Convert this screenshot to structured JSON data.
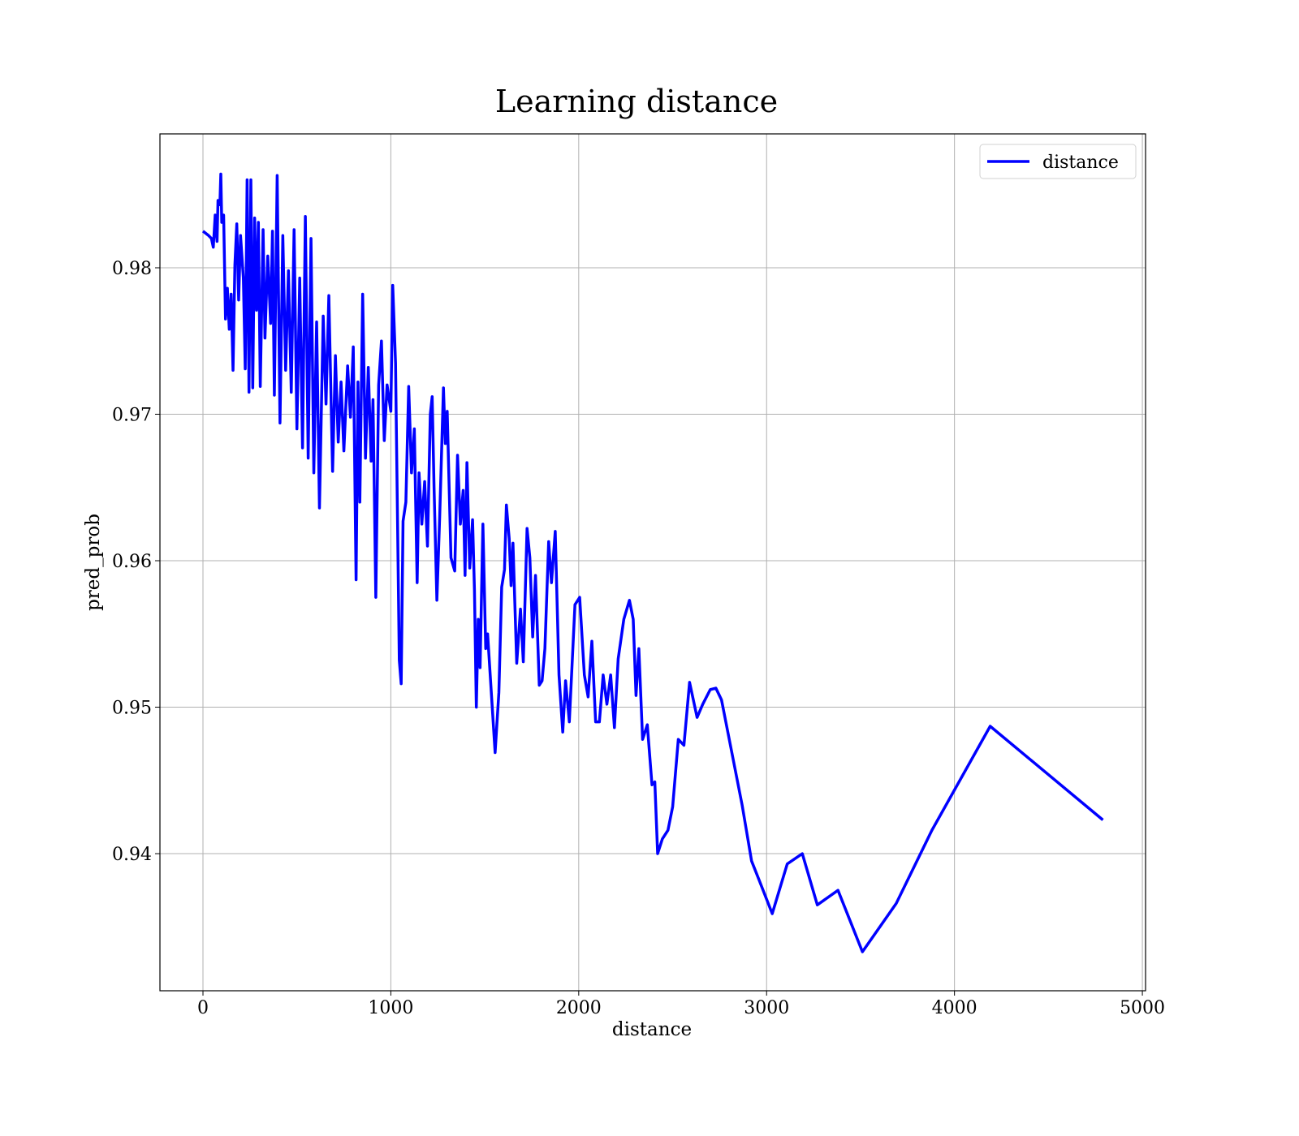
{
  "chart_data": {
    "type": "line",
    "title": "Learning distance",
    "x_label": "distance",
    "y_label": "pred_prob",
    "x": [
      0,
      30,
      45,
      55,
      65,
      75,
      80,
      90,
      95,
      100,
      110,
      120,
      130,
      140,
      150,
      160,
      170,
      180,
      190,
      200,
      215,
      225,
      235,
      245,
      255,
      265,
      275,
      285,
      295,
      305,
      320,
      330,
      345,
      360,
      370,
      380,
      395,
      410,
      425,
      440,
      455,
      470,
      485,
      500,
      515,
      530,
      545,
      560,
      575,
      590,
      605,
      620,
      640,
      655,
      670,
      690,
      705,
      720,
      735,
      750,
      770,
      785,
      800,
      815,
      825,
      835,
      850,
      865,
      880,
      895,
      905,
      920,
      935,
      950,
      965,
      980,
      1000,
      1010,
      1025,
      1045,
      1055,
      1065,
      1080,
      1095,
      1110,
      1125,
      1140,
      1150,
      1165,
      1180,
      1195,
      1210,
      1220,
      1230,
      1245,
      1260,
      1280,
      1290,
      1300,
      1320,
      1340,
      1355,
      1370,
      1385,
      1395,
      1405,
      1420,
      1435,
      1445,
      1455,
      1465,
      1475,
      1490,
      1505,
      1515,
      1555,
      1575,
      1590,
      1605,
      1615,
      1630,
      1640,
      1650,
      1670,
      1690,
      1705,
      1725,
      1740,
      1755,
      1770,
      1790,
      1805,
      1820,
      1840,
      1855,
      1875,
      1895,
      1915,
      1930,
      1950,
      1980,
      2005,
      2030,
      2050,
      2070,
      2090,
      2110,
      2130,
      2150,
      2170,
      2190,
      2210,
      2240,
      2270,
      2290,
      2305,
      2320,
      2340,
      2365,
      2390,
      2405,
      2420,
      2445,
      2475,
      2500,
      2530,
      2560,
      2590,
      2630,
      2660,
      2700,
      2730,
      2760,
      2870,
      2920,
      2960,
      3030,
      3110,
      3190,
      3270,
      3380,
      3510,
      3690,
      3880,
      4190,
      4790
    ],
    "series": [
      {
        "name": "distance",
        "color": "#0000ff",
        "values": [
          0.9825,
          0.9822,
          0.982,
          0.9814,
          0.9836,
          0.9818,
          0.9846,
          0.9843,
          0.9864,
          0.9831,
          0.9836,
          0.9765,
          0.9786,
          0.9758,
          0.9782,
          0.973,
          0.9802,
          0.983,
          0.9778,
          0.9822,
          0.9793,
          0.9731,
          0.986,
          0.9715,
          0.986,
          0.9718,
          0.9834,
          0.9771,
          0.9831,
          0.9719,
          0.9826,
          0.9752,
          0.9808,
          0.9762,
          0.9825,
          0.9713,
          0.9863,
          0.9694,
          0.9822,
          0.973,
          0.9798,
          0.9715,
          0.9826,
          0.969,
          0.9793,
          0.9677,
          0.9835,
          0.967,
          0.982,
          0.966,
          0.9763,
          0.9636,
          0.9767,
          0.9707,
          0.9781,
          0.9661,
          0.974,
          0.9681,
          0.9722,
          0.9675,
          0.9733,
          0.9698,
          0.9746,
          0.9587,
          0.9722,
          0.964,
          0.9782,
          0.967,
          0.9732,
          0.9668,
          0.971,
          0.9575,
          0.972,
          0.975,
          0.9682,
          0.972,
          0.9702,
          0.9788,
          0.9735,
          0.9532,
          0.9516,
          0.9627,
          0.964,
          0.9719,
          0.966,
          0.969,
          0.9585,
          0.966,
          0.9625,
          0.9654,
          0.961,
          0.97,
          0.9712,
          0.965,
          0.9573,
          0.963,
          0.9718,
          0.968,
          0.9702,
          0.9602,
          0.9593,
          0.9672,
          0.9625,
          0.9648,
          0.959,
          0.9667,
          0.9595,
          0.9628,
          0.958,
          0.95,
          0.956,
          0.9527,
          0.9625,
          0.954,
          0.955,
          0.9469,
          0.951,
          0.9582,
          0.9594,
          0.9638,
          0.9615,
          0.9583,
          0.9612,
          0.953,
          0.9567,
          0.9531,
          0.9622,
          0.9602,
          0.9548,
          0.959,
          0.9515,
          0.9518,
          0.954,
          0.9613,
          0.9585,
          0.962,
          0.9522,
          0.9483,
          0.9518,
          0.949,
          0.957,
          0.9575,
          0.9522,
          0.9507,
          0.9545,
          0.949,
          0.949,
          0.9522,
          0.9502,
          0.9522,
          0.9486,
          0.9533,
          0.956,
          0.9573,
          0.956,
          0.9508,
          0.954,
          0.9478,
          0.9488,
          0.9447,
          0.9449,
          0.94,
          0.941,
          0.9416,
          0.9432,
          0.9478,
          0.9474,
          0.9517,
          0.9493,
          0.9502,
          0.9512,
          0.9513,
          0.9505,
          0.9433,
          0.9395,
          0.9382,
          0.9359,
          0.9393,
          0.94,
          0.9365,
          0.9375,
          0.9333,
          0.9366,
          0.9416,
          0.9487,
          0.9423
        ]
      }
    ],
    "xlim": [
      -229,
      5017
    ],
    "ylim": [
      0.93064,
      0.98914
    ],
    "xticks": [
      0,
      1000,
      2000,
      3000,
      4000,
      5000
    ],
    "yticks": [
      0.94,
      0.95,
      0.96,
      0.97,
      0.98
    ],
    "grid": true,
    "legend": "upper right"
  }
}
